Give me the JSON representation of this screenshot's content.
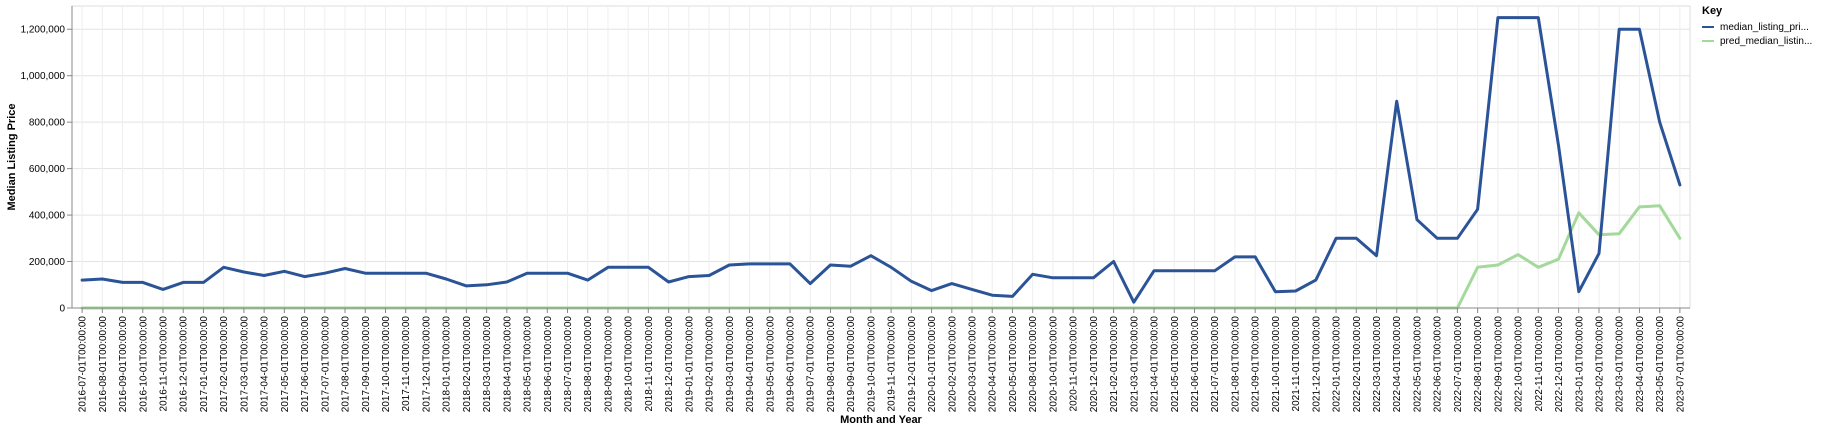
{
  "chart_data": {
    "type": "line",
    "title": "",
    "xlabel": "Month and Year",
    "ylabel": "Median Listing Price",
    "ylim": [
      0,
      1300000
    ],
    "y_ticks": [
      0,
      200000,
      400000,
      600000,
      800000,
      1000000,
      1200000
    ],
    "y_tick_labels": [
      "0",
      "200,000",
      "400,000",
      "600,000",
      "800,000",
      "1,000,000",
      "1,200,000"
    ],
    "grid": true,
    "legend": {
      "title": "Key",
      "position": "top-right"
    },
    "x": [
      "2016-07-01T00:00:00",
      "2016-08-01T00:00:00",
      "2016-09-01T00:00:00",
      "2016-10-01T00:00:00",
      "2016-11-01T00:00:00",
      "2016-12-01T00:00:00",
      "2017-01-01T00:00:00",
      "2017-02-01T00:00:00",
      "2017-03-01T00:00:00",
      "2017-04-01T00:00:00",
      "2017-05-01T00:00:00",
      "2017-06-01T00:00:00",
      "2017-07-01T00:00:00",
      "2017-08-01T00:00:00",
      "2017-09-01T00:00:00",
      "2017-10-01T00:00:00",
      "2017-11-01T00:00:00",
      "2017-12-01T00:00:00",
      "2018-01-01T00:00:00",
      "2018-02-01T00:00:00",
      "2018-03-01T00:00:00",
      "2018-04-01T00:00:00",
      "2018-05-01T00:00:00",
      "2018-06-01T00:00:00",
      "2018-07-01T00:00:00",
      "2018-08-01T00:00:00",
      "2018-09-01T00:00:00",
      "2018-10-01T00:00:00",
      "2018-11-01T00:00:00",
      "2018-12-01T00:00:00",
      "2019-01-01T00:00:00",
      "2019-02-01T00:00:00",
      "2019-03-01T00:00:00",
      "2019-04-01T00:00:00",
      "2019-05-01T00:00:00",
      "2019-06-01T00:00:00",
      "2019-07-01T00:00:00",
      "2019-08-01T00:00:00",
      "2019-09-01T00:00:00",
      "2019-10-01T00:00:00",
      "2019-11-01T00:00:00",
      "2019-12-01T00:00:00",
      "2020-01-01T00:00:00",
      "2020-02-01T00:00:00",
      "2020-03-01T00:00:00",
      "2020-04-01T00:00:00",
      "2020-05-01T00:00:00",
      "2020-08-01T00:00:00",
      "2020-10-01T00:00:00",
      "2020-11-01T00:00:00",
      "2020-12-01T00:00:00",
      "2021-02-01T00:00:00",
      "2021-03-01T00:00:00",
      "2021-04-01T00:00:00",
      "2021-05-01T00:00:00",
      "2021-06-01T00:00:00",
      "2021-07-01T00:00:00",
      "2021-08-01T00:00:00",
      "2021-09-01T00:00:00",
      "2021-10-01T00:00:00",
      "2021-11-01T00:00:00",
      "2021-12-01T00:00:00",
      "2022-01-01T00:00:00",
      "2022-02-01T00:00:00",
      "2022-03-01T00:00:00",
      "2022-04-01T00:00:00",
      "2022-05-01T00:00:00",
      "2022-06-01T00:00:00",
      "2022-07-01T00:00:00",
      "2022-08-01T00:00:00",
      "2022-09-01T00:00:00",
      "2022-10-01T00:00:00",
      "2022-11-01T00:00:00",
      "2022-12-01T00:00:00",
      "2023-01-01T00:00:00",
      "2023-02-01T00:00:00",
      "2023-03-01T00:00:00",
      "2023-04-01T00:00:00",
      "2023-05-01T00:00:00",
      "2023-07-01T00:00:00"
    ],
    "series": [
      {
        "name": "median_listing_pri...",
        "color": "#2b5397",
        "values": [
          120000,
          125000,
          110000,
          110000,
          80000,
          110000,
          110000,
          175000,
          155000,
          140000,
          158000,
          135000,
          150000,
          170000,
          150000,
          150000,
          150000,
          150000,
          125000,
          95000,
          100000,
          112000,
          150000,
          150000,
          150000,
          120000,
          175000,
          175000,
          175000,
          112000,
          135000,
          140000,
          185000,
          190000,
          190000,
          190000,
          105000,
          185000,
          180000,
          225000,
          175000,
          115000,
          75000,
          105000,
          80000,
          55000,
          50000,
          145000,
          130000,
          130000,
          130000,
          200000,
          25000,
          160000,
          160000,
          160000,
          160000,
          220000,
          220000,
          70000,
          73000,
          120000,
          300000,
          300000,
          225000,
          890000,
          380000,
          300000,
          300000,
          425000,
          1250000,
          1250000,
          1250000,
          700000,
          70000,
          235000,
          1200000,
          1200000,
          800000,
          530000
        ]
      },
      {
        "name": "pred_median_listin...",
        "color": "#a3d99a",
        "values": [
          0,
          0,
          0,
          0,
          0,
          0,
          0,
          0,
          0,
          0,
          0,
          0,
          0,
          0,
          0,
          0,
          0,
          0,
          0,
          0,
          0,
          0,
          0,
          0,
          0,
          0,
          0,
          0,
          0,
          0,
          0,
          0,
          0,
          0,
          0,
          0,
          0,
          0,
          0,
          0,
          0,
          0,
          0,
          0,
          0,
          0,
          0,
          0,
          0,
          0,
          0,
          0,
          0,
          0,
          0,
          0,
          0,
          0,
          0,
          0,
          0,
          0,
          0,
          0,
          0,
          0,
          0,
          0,
          0,
          175000,
          185000,
          230000,
          175000,
          210000,
          410000,
          315000,
          320000,
          435000,
          440000,
          300000
        ]
      }
    ]
  }
}
